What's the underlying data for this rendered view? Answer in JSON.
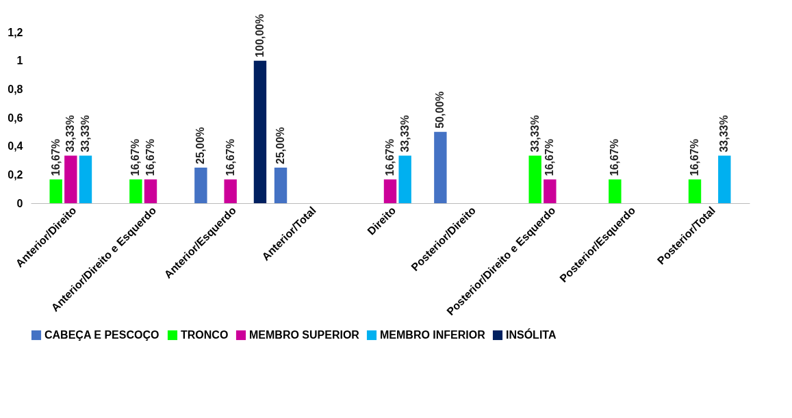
{
  "chart_data": {
    "type": "bar",
    "categories": [
      "Anterior/Direito",
      "Anterior/Direito e Esquerdo",
      "Anterior/Esquerdo",
      "Anterior/Total",
      "Direito",
      "Posterior/Direito",
      "Posterior/Direito e Esquerdo",
      "Posterior/Esquerdo",
      "Posterior/Total"
    ],
    "series": [
      {
        "name": "CABEÇA E PESCOÇO",
        "color": "#4472c4",
        "values": [
          null,
          null,
          0.25,
          0.25,
          null,
          0.5,
          null,
          null,
          null
        ],
        "value_labels": [
          null,
          null,
          "25,00%",
          "25,00%",
          null,
          "50,00%",
          null,
          null,
          null
        ]
      },
      {
        "name": "TRONCO",
        "color": "#00ff00",
        "values": [
          0.1667,
          0.1667,
          null,
          null,
          null,
          null,
          0.3333,
          0.1667,
          0.1667
        ],
        "value_labels": [
          "16,67%",
          "16,67%",
          null,
          null,
          null,
          null,
          "33,33%",
          "16,67%",
          "16,67%"
        ]
      },
      {
        "name": "MEMBRO SUPERIOR",
        "color": "#cc0099",
        "values": [
          0.3333,
          0.1667,
          0.1667,
          null,
          0.1667,
          null,
          0.1667,
          null,
          null
        ],
        "value_labels": [
          "33,33%",
          "16,67%",
          "16,67%",
          null,
          "16,67%",
          null,
          "16,67%",
          null,
          null
        ]
      },
      {
        "name": "MEMBRO INFERIOR",
        "color": "#00b0f0",
        "values": [
          0.3333,
          null,
          null,
          null,
          0.3333,
          null,
          null,
          null,
          0.3333
        ],
        "value_labels": [
          "33,33%",
          null,
          null,
          null,
          "33,33%",
          null,
          null,
          null,
          "33,33%"
        ]
      },
      {
        "name": "INSÓLITA",
        "color": "#002060",
        "values": [
          null,
          null,
          1,
          null,
          null,
          null,
          null,
          null,
          null
        ],
        "value_labels": [
          null,
          null,
          "100,00%",
          null,
          null,
          null,
          null,
          null,
          null
        ]
      }
    ],
    "ylim": [
      0,
      1.2
    ],
    "yticks": [
      0,
      {
        "value": 0.2,
        "label": "0,2"
      },
      {
        "value": 0.4,
        "label": "0,4"
      },
      {
        "value": 0.6,
        "label": "0,6"
      },
      {
        "value": 0.8,
        "label": "0,8"
      },
      1,
      {
        "value": 1.2,
        "label": "1,2"
      }
    ],
    "grid": false,
    "legend": "bottom"
  }
}
